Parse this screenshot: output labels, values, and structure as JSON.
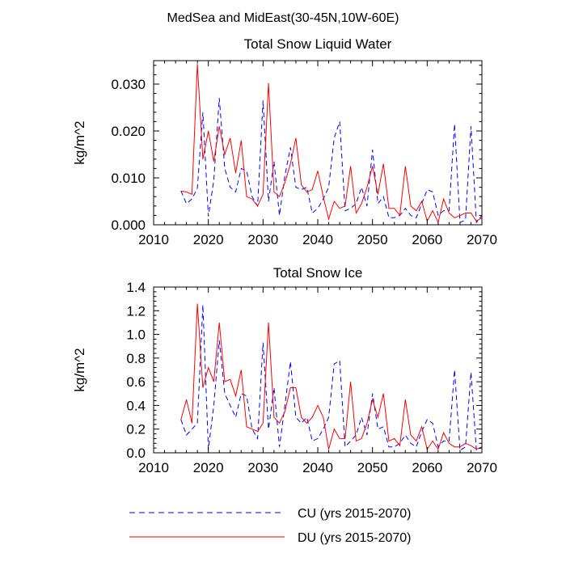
{
  "figure": {
    "suptitle": "MedSea and MidEast(30-45N,10W-60E)"
  },
  "colors": {
    "cu": "#0000ff",
    "du": "#ff0000",
    "axes": "#000000"
  },
  "legend": {
    "placement": "bottom-center",
    "entries": [
      {
        "series": "CU",
        "label": "CU (yrs 2015-2070)",
        "style": "dashed"
      },
      {
        "series": "DU",
        "label": "DU (yrs 2015-2070)",
        "style": "solid"
      }
    ]
  },
  "chart_data": [
    {
      "type": "line",
      "title": "Total Snow Liquid Water",
      "xlabel": "",
      "ylabel": "kg/m^2",
      "xlim": [
        2010,
        2070
      ],
      "ylim": [
        0,
        0.035
      ],
      "xticks": [
        2010,
        2020,
        2030,
        2040,
        2050,
        2060,
        2070
      ],
      "xtick_labels": [
        "2010",
        "2020",
        "2030",
        "2040",
        "2050",
        "2060",
        "2070"
      ],
      "yticks": [
        0,
        0.01,
        0.02,
        0.03
      ],
      "ytick_labels": [
        "0.000",
        "0.010",
        "0.020",
        "0.030"
      ],
      "x": [
        2015,
        2016,
        2017,
        2018,
        2019,
        2020,
        2021,
        2022,
        2023,
        2024,
        2025,
        2026,
        2027,
        2028,
        2029,
        2030,
        2031,
        2032,
        2033,
        2034,
        2035,
        2036,
        2037,
        2038,
        2039,
        2040,
        2041,
        2042,
        2043,
        2044,
        2045,
        2046,
        2047,
        2048,
        2049,
        2050,
        2051,
        2052,
        2053,
        2054,
        2055,
        2056,
        2057,
        2058,
        2059,
        2060,
        2061,
        2062,
        2063,
        2064,
        2065,
        2066,
        2067,
        2068,
        2069,
        2070
      ],
      "series": [
        {
          "name": "CU",
          "style": "dashed",
          "values": [
            0.0072,
            0.0045,
            0.0055,
            0.0078,
            0.024,
            0.0018,
            0.0095,
            0.027,
            0.012,
            0.008,
            0.007,
            0.012,
            0.0115,
            0.006,
            0.004,
            0.0265,
            0.005,
            0.0135,
            0.002,
            0.0105,
            0.0165,
            0.008,
            0.0075,
            0.008,
            0.0025,
            0.0035,
            0.0055,
            0.008,
            0.0185,
            0.022,
            0.003,
            0.0035,
            0.0045,
            0.008,
            0.004,
            0.016,
            0.0045,
            0.006,
            0.0015,
            0.0015,
            0.002,
            0.0035,
            0.002,
            0.0015,
            0.0045,
            0.0075,
            0.007,
            0.002,
            0.003,
            0.003,
            0.0215,
            0.0005,
            0.001,
            0.021,
            0.0005,
            0.002
          ]
        },
        {
          "name": "DU",
          "style": "solid",
          "values": [
            0.0072,
            0.007,
            0.0065,
            0.0343,
            0.014,
            0.02,
            0.0135,
            0.021,
            0.015,
            0.0185,
            0.011,
            0.018,
            0.006,
            0.0055,
            0.004,
            0.0065,
            0.0302,
            0.007,
            0.006,
            0.009,
            0.013,
            0.0185,
            0.0085,
            0.007,
            0.0075,
            0.0115,
            0.006,
            0.0012,
            0.005,
            0.0035,
            0.004,
            0.0125,
            0.0025,
            0.0045,
            0.008,
            0.0125,
            0.0065,
            0.013,
            0.0035,
            0.0035,
            0.002,
            0.0125,
            0.004,
            0.003,
            0.005,
            0.0008,
            0.003,
            0.0005,
            0.0055,
            0.0025,
            0.0015,
            0.002,
            0.0025,
            0.0025,
            0.0008,
            0.0015
          ]
        }
      ]
    },
    {
      "type": "line",
      "title": "Total Snow Ice",
      "xlabel": "",
      "ylabel": "kg/m^2",
      "xlim": [
        2010,
        2070
      ],
      "ylim": [
        0,
        1.4
      ],
      "xticks": [
        2010,
        2020,
        2030,
        2040,
        2050,
        2060,
        2070
      ],
      "xtick_labels": [
        "2010",
        "2020",
        "2030",
        "2040",
        "2050",
        "2060",
        "2070"
      ],
      "yticks": [
        0,
        0.2,
        0.4,
        0.6,
        0.8,
        1.0,
        1.2,
        1.4
      ],
      "ytick_labels": [
        "0.0",
        "0.2",
        "0.4",
        "0.6",
        "0.8",
        "1.0",
        "1.2",
        "1.4"
      ],
      "x": [
        2015,
        2016,
        2017,
        2018,
        2019,
        2020,
        2021,
        2022,
        2023,
        2024,
        2025,
        2026,
        2027,
        2028,
        2029,
        2030,
        2031,
        2032,
        2033,
        2034,
        2035,
        2036,
        2037,
        2038,
        2039,
        2040,
        2041,
        2042,
        2043,
        2044,
        2045,
        2046,
        2047,
        2048,
        2049,
        2050,
        2051,
        2052,
        2053,
        2054,
        2055,
        2056,
        2057,
        2058,
        2059,
        2060,
        2061,
        2062,
        2063,
        2064,
        2065,
        2066,
        2067,
        2068,
        2069,
        2070
      ],
      "series": [
        {
          "name": "CU",
          "style": "dashed",
          "values": [
            0.28,
            0.15,
            0.2,
            0.25,
            1.25,
            0.03,
            0.4,
            0.95,
            0.5,
            0.4,
            0.3,
            0.5,
            0.48,
            0.2,
            0.12,
            0.93,
            0.2,
            0.55,
            0.05,
            0.4,
            0.77,
            0.3,
            0.25,
            0.3,
            0.1,
            0.12,
            0.2,
            0.3,
            0.75,
            0.78,
            0.05,
            0.1,
            0.15,
            0.3,
            0.15,
            0.5,
            0.2,
            0.22,
            0.05,
            0.05,
            0.08,
            0.15,
            0.08,
            0.05,
            0.18,
            0.28,
            0.25,
            0.05,
            0.1,
            0.1,
            0.7,
            0.02,
            0.05,
            0.68,
            0.02,
            0.05
          ]
        },
        {
          "name": "DU",
          "style": "solid",
          "values": [
            0.28,
            0.45,
            0.25,
            1.26,
            0.55,
            0.72,
            0.6,
            1.1,
            0.6,
            0.62,
            0.48,
            0.7,
            0.22,
            0.2,
            0.18,
            0.25,
            1.1,
            0.3,
            0.25,
            0.35,
            0.55,
            0.55,
            0.3,
            0.25,
            0.3,
            0.4,
            0.3,
            0.03,
            0.2,
            0.12,
            0.12,
            0.6,
            0.1,
            0.12,
            0.25,
            0.45,
            0.3,
            0.5,
            0.1,
            0.12,
            0.06,
            0.45,
            0.15,
            0.1,
            0.22,
            0.03,
            0.1,
            0.03,
            0.17,
            0.08,
            0.05,
            0.05,
            0.08,
            0.06,
            0.03,
            0.05
          ]
        }
      ]
    }
  ]
}
